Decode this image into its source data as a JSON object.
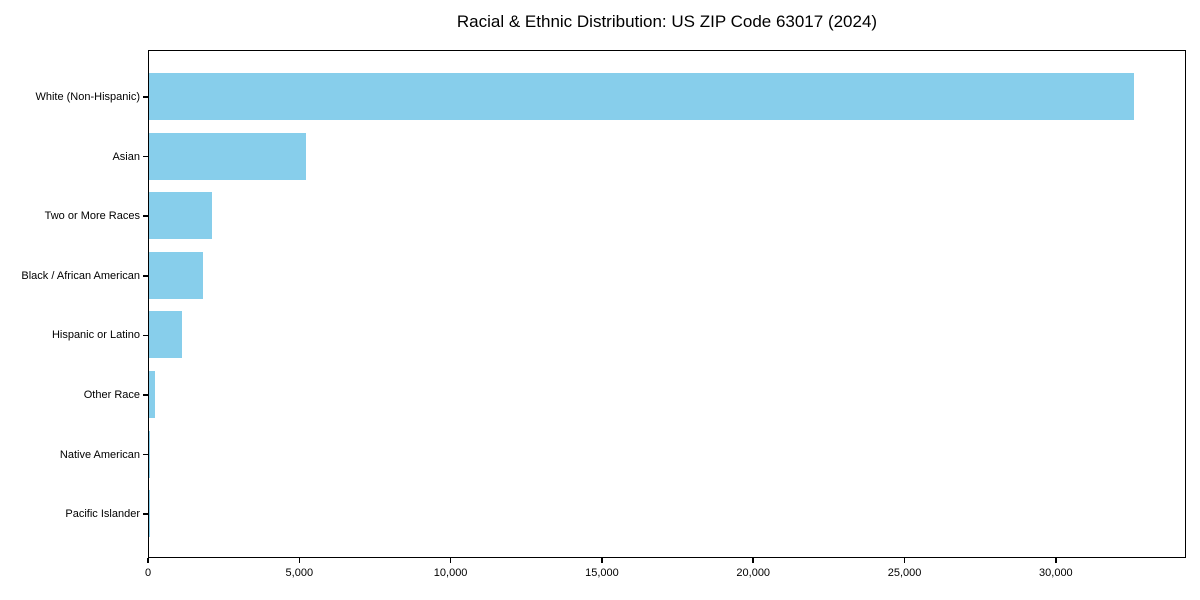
{
  "chart_data": {
    "type": "bar",
    "orientation": "horizontal",
    "title": "Racial & Ethnic Distribution: US ZIP Code 63017 (2024)",
    "categories": [
      "White (Non-Hispanic)",
      "Asian",
      "Two or More Races",
      "Black / African American",
      "Hispanic or Latino",
      "Other Race",
      "Native American",
      "Pacific Islander"
    ],
    "values": [
      32650,
      5200,
      2100,
      1800,
      1080,
      190,
      40,
      10
    ],
    "xlabel": "",
    "ylabel": "",
    "xlim": [
      0,
      34300
    ],
    "x_ticks": [
      0,
      5000,
      10000,
      15000,
      20000,
      25000,
      30000
    ],
    "x_tick_labels": [
      "0",
      "5,000",
      "10,000",
      "15,000",
      "20,000",
      "25,000",
      "30,000"
    ],
    "bar_color": "#87CEEB",
    "axis_color": "#000000",
    "background_color": "#FFFFFF",
    "grid": false,
    "legend": null
  }
}
